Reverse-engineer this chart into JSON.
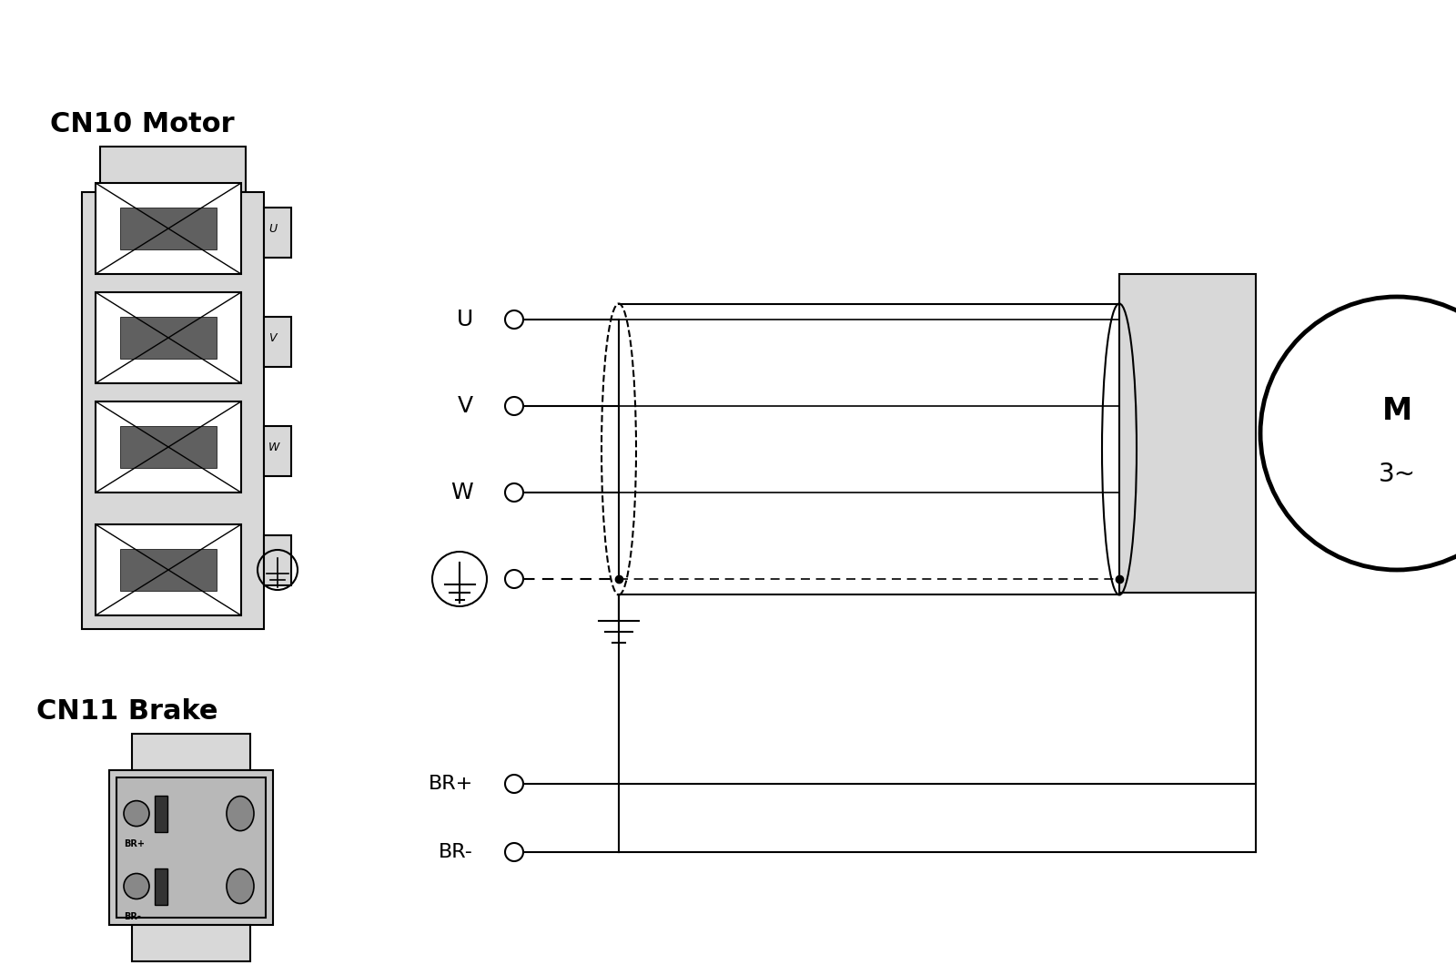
{
  "bg_color": "#ffffff",
  "line_color": "#000000",
  "connector_fill": "#d8d8d8",
  "dark_fill": "#606060",
  "title_cn10": "CN10 Motor",
  "title_cn11": "CN11 Brake",
  "motor_label1": "M",
  "motor_label2": "3~",
  "uvw_labels": [
    "U",
    "V",
    "W"
  ],
  "br_labels": [
    "BR+",
    "BR-"
  ],
  "figsize": [
    16.0,
    10.71
  ],
  "dpi": 100
}
